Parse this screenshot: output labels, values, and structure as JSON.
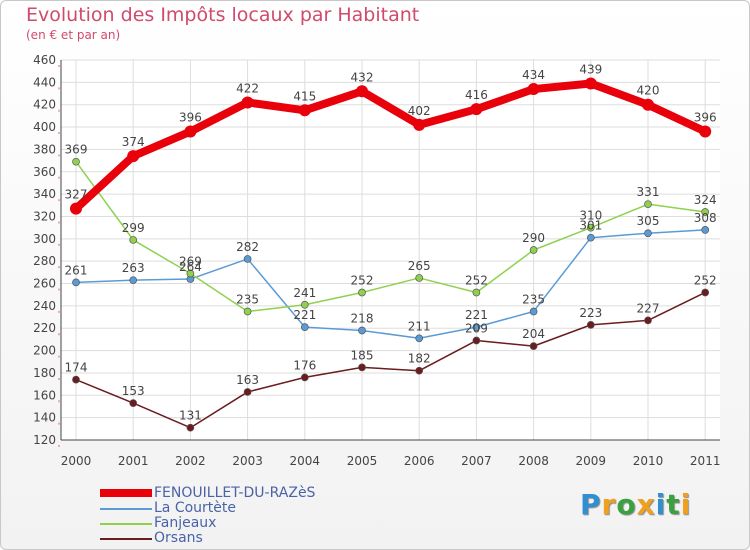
{
  "title": "Evolution des Impôts locaux par Habitant",
  "subtitle": "(en € et par an)",
  "logo": {
    "letters": [
      "P",
      "r",
      "o",
      "x",
      "i",
      "t",
      "i"
    ],
    "colors": [
      "#2f8fd0",
      "#f0a020",
      "#3aa040",
      "#f0a020",
      "#2f8fd0",
      "#3aa040",
      "#f0a020"
    ]
  },
  "chart_data": {
    "type": "line",
    "x": [
      "2000",
      "2001",
      "2002",
      "2003",
      "2004",
      "2005",
      "2006",
      "2007",
      "2008",
      "2009",
      "2010",
      "2011"
    ],
    "ylim": [
      120,
      460
    ],
    "yticks": [
      "120",
      "140",
      "160",
      "180",
      "200",
      "220",
      "240",
      "260",
      "280",
      "300",
      "320",
      "340",
      "360",
      "380",
      "400",
      "420",
      "440",
      "460"
    ],
    "grid": true,
    "legend": "bottom-left",
    "series": [
      {
        "name": "FENOUILLET-DU-RAZèS",
        "color": "#e8000b",
        "values": [
          327,
          374,
          396,
          422,
          415,
          432,
          402,
          416,
          434,
          439,
          420,
          396
        ],
        "labels": [
          "327",
          "374",
          "396",
          "422",
          "415",
          "432",
          "402",
          "416",
          "434",
          "439",
          "420",
          "396"
        ]
      },
      {
        "name": "La Courtète",
        "color": "#5b9bd5",
        "values": [
          261,
          263,
          264,
          282,
          221,
          218,
          211,
          221,
          235,
          301,
          305,
          308
        ],
        "labels": [
          "261",
          "263",
          "264",
          "282",
          "221",
          "218",
          "211",
          "221",
          "235",
          "301",
          "305",
          "308"
        ]
      },
      {
        "name": "Fanjeaux",
        "color": "#8fd14f",
        "values": [
          369,
          299,
          269,
          235,
          241,
          252,
          265,
          252,
          290,
          310,
          331,
          324
        ],
        "labels": [
          "369",
          "299",
          "269",
          "235",
          "241",
          "252",
          "265",
          "252",
          "290",
          "310",
          "331",
          "324"
        ]
      },
      {
        "name": "Orsans",
        "color": "#6b1c1f",
        "values": [
          174,
          153,
          131,
          163,
          176,
          185,
          182,
          209,
          204,
          223,
          227,
          252
        ],
        "labels": [
          "174",
          "153",
          "131",
          "163",
          "176",
          "185",
          "182",
          "209",
          "204",
          "223",
          "227",
          "252"
        ]
      }
    ]
  }
}
